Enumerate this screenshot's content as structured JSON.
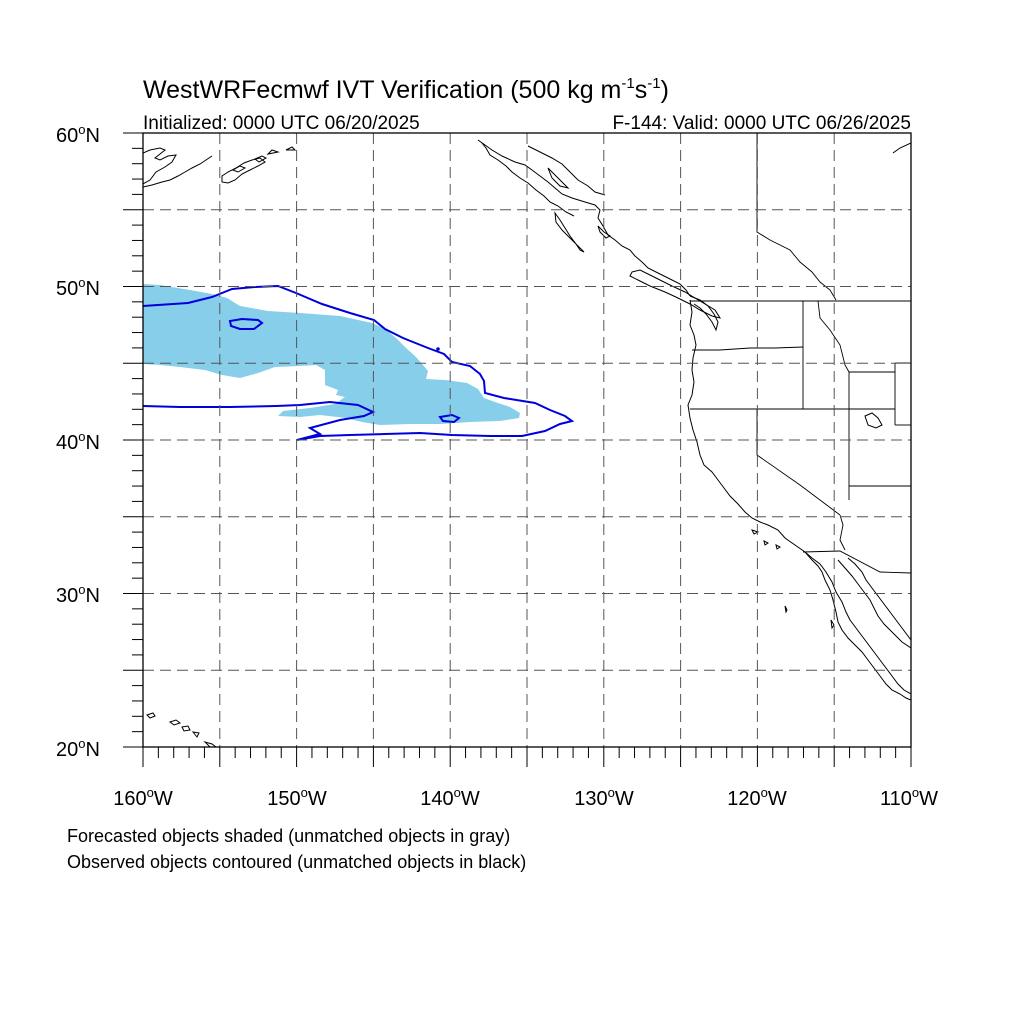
{
  "title": {
    "main": "WestWRFecmwf IVT Verification (500 kg m",
    "exp1": "-1",
    "mid": "s",
    "exp2": "-1",
    "end": ")"
  },
  "subtitle_left": "Initialized: 0000 UTC 06/20/2025",
  "subtitle_right": "F-144: Valid: 0000 UTC 06/26/2025",
  "lat_labels": [
    "60",
    "50",
    "40",
    "30",
    "20"
  ],
  "lat_suffix": "N",
  "lon_labels": [
    "160",
    "150",
    "140",
    "130",
    "120",
    "110"
  ],
  "lon_suffix": "W",
  "degree_symbol": "o",
  "footer": {
    "line1": "Forecasted objects shaded (unmatched objects in gray)",
    "line2": "Observed objects contoured (unmatched objects in black)"
  },
  "map_extent": {
    "lon_min": -160,
    "lon_max": -110,
    "lat_min": 20,
    "lat_max": 60
  },
  "colors": {
    "forecast_fill": "#87ceeb",
    "observed_contour": "#0000dd",
    "coastline": "#000000",
    "gridline": "#555555"
  }
}
